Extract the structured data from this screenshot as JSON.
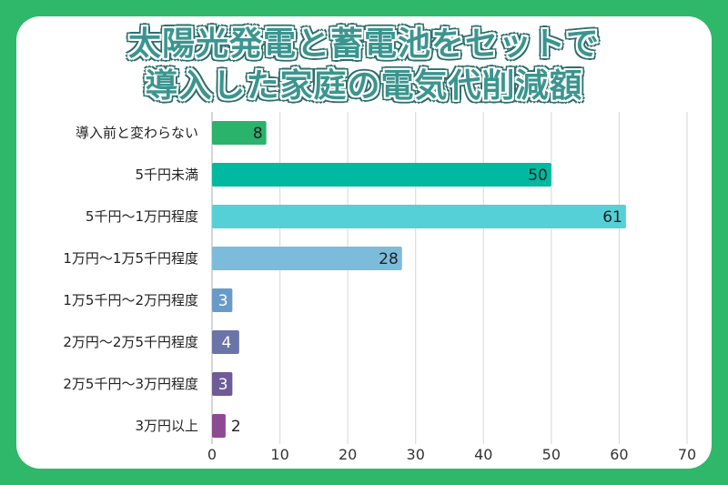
{
  "chart_data": {
    "type": "bar",
    "orientation": "horizontal",
    "title": "太陽光発電と蓄電池をセットで\n導入した家庭の電気代削減額",
    "title_lines": [
      "太陽光発電と蓄電池をセットで",
      "導入した家庭の電気代削減額"
    ],
    "categories": [
      "導入前と変わらない",
      "5千円未満",
      "5千円〜1万円程度",
      "1万円〜1万5千円程度",
      "1万5千円〜2万円程度",
      "2万円〜2万5千円程度",
      "2万5千円〜3万円程度",
      "3万円以上"
    ],
    "values": [
      8,
      50,
      61,
      28,
      3,
      4,
      3,
      2
    ],
    "colors": [
      "#2ab36b",
      "#00b9a0",
      "#55d0d6",
      "#7cbcda",
      "#6a9bc8",
      "#6a74a6",
      "#6f5b98",
      "#8d4a92"
    ],
    "xlim": [
      0,
      70
    ],
    "xticks": [
      0,
      10,
      20,
      30,
      40,
      50,
      60,
      70
    ],
    "grid": true,
    "xlabel": "",
    "ylabel": ""
  },
  "colors": {
    "background": "#2fb86a",
    "title": "#3b958f"
  }
}
